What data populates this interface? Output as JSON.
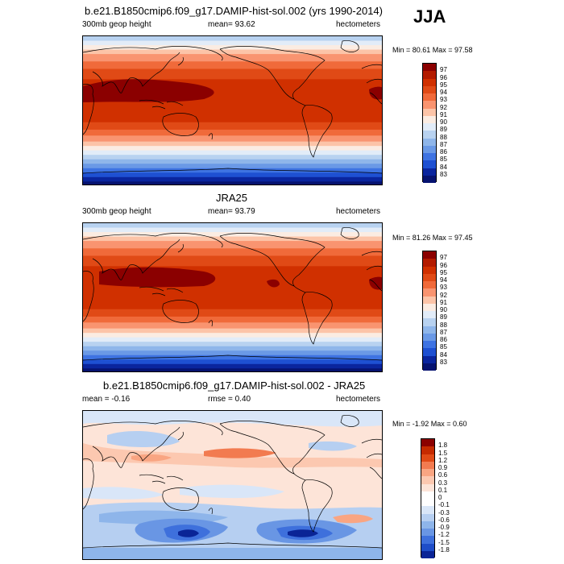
{
  "season": "JJA",
  "panels": [
    {
      "title": "b.e21.B1850cmip6.f09_g17.DAMIP-hist-sol.002 (yrs 1990-2014)",
      "left_label": "300mb geop height",
      "center_label": "mean=  93.62",
      "right_label": "hectometers",
      "minmax": "Min =  80.61 Max =  97.58",
      "colorbar_ticks": [
        "97",
        "96",
        "95",
        "94",
        "93",
        "92",
        "91",
        "90",
        "89",
        "88",
        "87",
        "86",
        "85",
        "84",
        "83"
      ]
    },
    {
      "title": "JRA25",
      "left_label": "300mb geop height",
      "center_label": "mean=  93.79",
      "right_label": "hectometers",
      "minmax": "Min =  81.26 Max =  97.45",
      "colorbar_ticks": [
        "97",
        "96",
        "95",
        "94",
        "93",
        "92",
        "91",
        "90",
        "89",
        "88",
        "87",
        "86",
        "85",
        "84",
        "83"
      ]
    },
    {
      "title": "b.e21.B1850cmip6.f09_g17.DAMIP-hist-sol.002 - JRA25",
      "left_label": "mean =  -0.16",
      "center_label": "rmse =   0.40",
      "right_label": "hectometers",
      "minmax": "Min =  -1.92 Max =   0.60",
      "colorbar_ticks": [
        "1.8",
        "1.5",
        "1.2",
        "0.9",
        "0.6",
        "0.3",
        "0.1",
        "0",
        "-0.1",
        "-0.3",
        "-0.6",
        "-0.9",
        "-1.2",
        "-1.5",
        "-1.8"
      ]
    }
  ],
  "chart_data": [
    {
      "type": "heatmap",
      "title": "b.e21.B1850cmip6.f09_g17.DAMIP-hist-sol.002 (yrs 1990-2014)",
      "variable": "300mb geop height",
      "units": "hectometers",
      "mean": 93.62,
      "min": 80.61,
      "max": 97.58,
      "levels": [
        83,
        84,
        85,
        86,
        87,
        88,
        89,
        90,
        91,
        92,
        93,
        94,
        95,
        96,
        97
      ]
    },
    {
      "type": "heatmap",
      "title": "JRA25",
      "variable": "300mb geop height",
      "units": "hectometers",
      "mean": 93.79,
      "min": 81.26,
      "max": 97.45,
      "levels": [
        83,
        84,
        85,
        86,
        87,
        88,
        89,
        90,
        91,
        92,
        93,
        94,
        95,
        96,
        97
      ]
    },
    {
      "type": "heatmap",
      "title": "b.e21.B1850cmip6.f09_g17.DAMIP-hist-sol.002 - JRA25",
      "units": "hectometers",
      "mean": -0.16,
      "rmse": 0.4,
      "min": -1.92,
      "max": 0.6,
      "levels": [
        -1.8,
        -1.5,
        -1.2,
        -0.9,
        -0.6,
        -0.3,
        -0.1,
        0,
        0.1,
        0.3,
        0.6,
        0.9,
        1.2,
        1.5,
        1.8
      ]
    }
  ],
  "colors": {
    "abs_scale_top_to_bottom": [
      "#8b0000",
      "#b31b00",
      "#d03000",
      "#e04a16",
      "#f06a3a",
      "#f99470",
      "#fcc4a8",
      "#fbece2",
      "#e2ecf8",
      "#b8d2f0",
      "#8fb6ea",
      "#6a99e6",
      "#3e73e2",
      "#1e50d2",
      "#0a259e",
      "#061370"
    ],
    "diff_scale_top_to_bottom": [
      "#8b0000",
      "#c52a00",
      "#e04a16",
      "#f27b50",
      "#f9a582",
      "#fcc8b0",
      "#fde4d8",
      "#ffffff",
      "#ffffff",
      "#d9e6f8",
      "#b6cff1",
      "#8eb5ea",
      "#6996e4",
      "#3e70dc",
      "#1e4dc8",
      "#0a2496"
    ]
  }
}
